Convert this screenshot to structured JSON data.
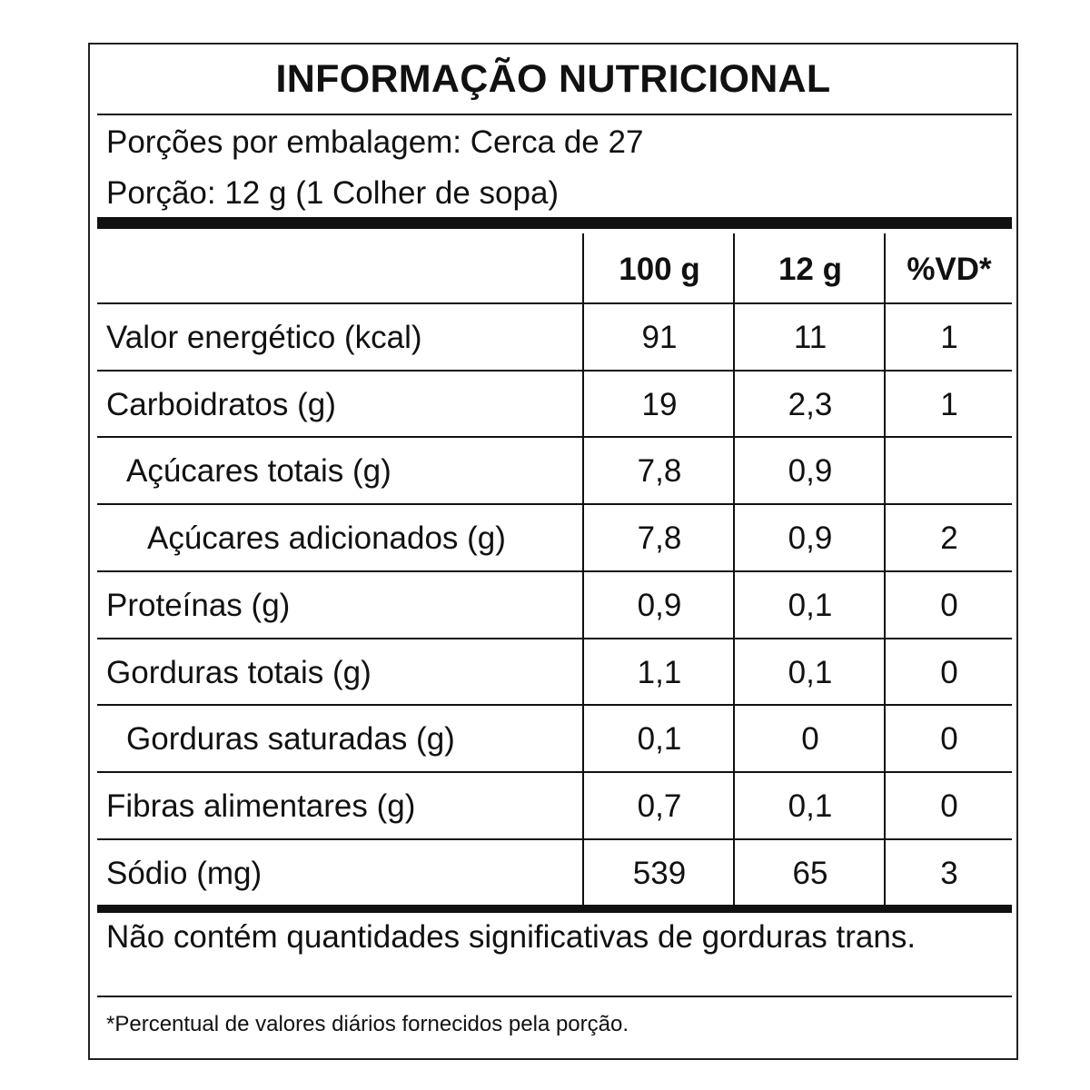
{
  "label": {
    "title": "INFORMAÇÃO NUTRICIONAL",
    "servings_per_package": "Porções por embalagem: Cerca de 27",
    "serving_size": "Porção: 12 g (1 Colher de sopa)",
    "columns": [
      "100 g",
      "12 g",
      "%VD*"
    ],
    "rows": [
      {
        "name": "Valor energético (kcal)",
        "per100": "91",
        "perServing": "11",
        "dv": "1",
        "indent": 0
      },
      {
        "name": "Carboidratos (g)",
        "per100": "19",
        "perServing": "2,3",
        "dv": "1",
        "indent": 0
      },
      {
        "name": "Açúcares totais (g)",
        "per100": "7,8",
        "perServing": "0,9",
        "dv": "",
        "indent": 1
      },
      {
        "name": "Açúcares adicionados (g)",
        "per100": "7,8",
        "perServing": "0,9",
        "dv": "2",
        "indent": 2
      },
      {
        "name": "Proteínas (g)",
        "per100": "0,9",
        "perServing": "0,1",
        "dv": "0",
        "indent": 0
      },
      {
        "name": "Gorduras totais (g)",
        "per100": "1,1",
        "perServing": "0,1",
        "dv": "0",
        "indent": 0
      },
      {
        "name": "Gorduras saturadas (g)",
        "per100": "0,1",
        "perServing": "0",
        "dv": "0",
        "indent": 1
      },
      {
        "name": "Fibras alimentares (g)",
        "per100": "0,7",
        "perServing": "0,1",
        "dv": "0",
        "indent": 0
      },
      {
        "name": "Sódio (mg)",
        "per100": "539",
        "perServing": "65",
        "dv": "3",
        "indent": 0
      }
    ],
    "trans_fat_note": "Não contém quantidades significativas de gorduras trans.",
    "footnote": "*Percentual de valores diários fornecidos pela porção."
  }
}
